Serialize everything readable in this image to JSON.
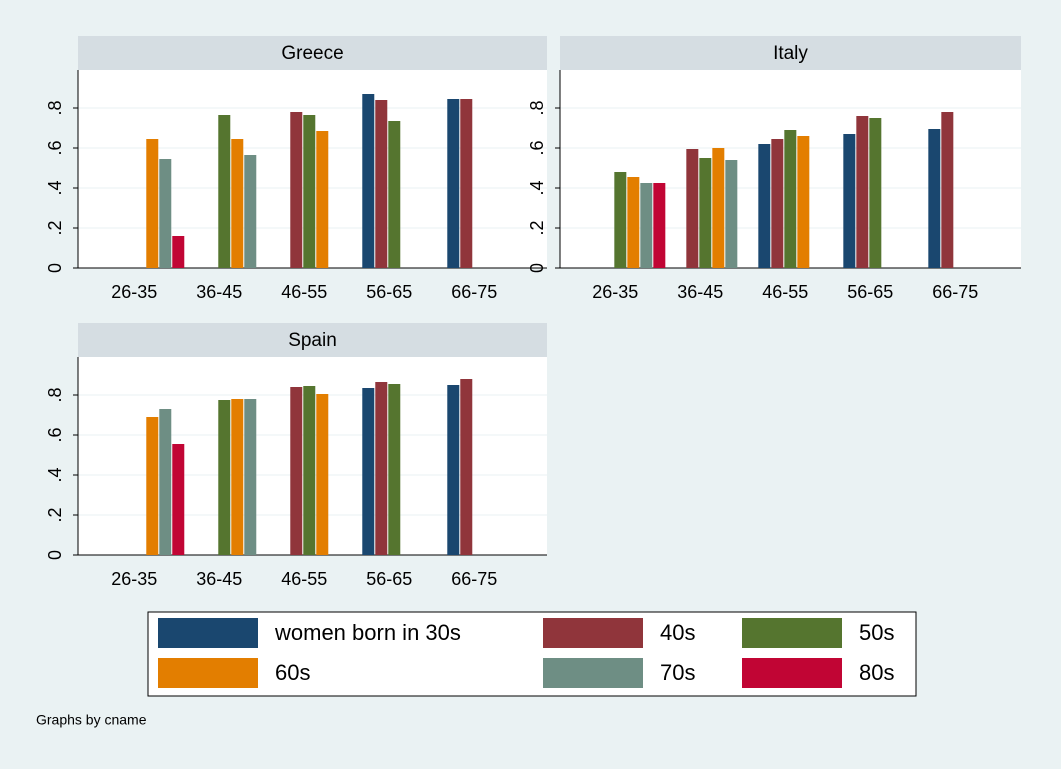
{
  "chart_data": {
    "type": "bar",
    "series": [
      {
        "name": "women born in 30s",
        "color": "#1a476f"
      },
      {
        "name": "40s",
        "color": "#90353b"
      },
      {
        "name": "50s",
        "color": "#55752f"
      },
      {
        "name": "60s",
        "color": "#e37e00"
      },
      {
        "name": "70s",
        "color": "#6e8e84"
      },
      {
        "name": "80s",
        "color": "#c10534"
      }
    ],
    "ylim": [
      0,
      0.99
    ],
    "yticks": [
      0,
      {
        "value": 0.2,
        "label": ".2"
      },
      {
        "value": 0.4,
        "label": ".4"
      },
      {
        "value": 0.6,
        "label": ".6"
      },
      {
        "value": 0.8,
        "label": ".8"
      }
    ],
    "grid": true,
    "panels": [
      {
        "title": "Greece",
        "categories": [
          "26-35",
          "36-45",
          "46-55",
          "56-65",
          "66-75"
        ],
        "values": [
          [
            null,
            null,
            null,
            0.87,
            0.845
          ],
          [
            null,
            null,
            0.78,
            0.84,
            0.845
          ],
          [
            null,
            0.765,
            0.765,
            0.735,
            null
          ],
          [
            0.645,
            0.645,
            0.685,
            null,
            null
          ],
          [
            0.545,
            0.565,
            null,
            null,
            null
          ],
          [
            0.16,
            null,
            null,
            null,
            null
          ]
        ]
      },
      {
        "title": "Italy",
        "categories": [
          "26-35",
          "36-45",
          "46-55",
          "56-65",
          "66-75"
        ],
        "values": [
          [
            null,
            null,
            0.62,
            0.67,
            0.695
          ],
          [
            null,
            0.595,
            0.645,
            0.76,
            0.78
          ],
          [
            0.48,
            0.55,
            0.69,
            0.75,
            null
          ],
          [
            0.455,
            0.6,
            0.66,
            null,
            null
          ],
          [
            0.425,
            0.54,
            null,
            null,
            null
          ],
          [
            0.425,
            null,
            null,
            null,
            null
          ]
        ]
      },
      {
        "title": "Spain",
        "categories": [
          "26-35",
          "36-45",
          "46-55",
          "56-65",
          "66-75"
        ],
        "values": [
          [
            null,
            null,
            null,
            0.835,
            0.85
          ],
          [
            null,
            null,
            0.84,
            0.865,
            0.88
          ],
          [
            null,
            0.775,
            0.845,
            0.855,
            null
          ],
          [
            0.69,
            0.78,
            0.805,
            null,
            null
          ],
          [
            0.73,
            0.78,
            null,
            null,
            null
          ],
          [
            0.555,
            null,
            null,
            null,
            null
          ]
        ]
      }
    ],
    "note": "Graphs by cname"
  }
}
